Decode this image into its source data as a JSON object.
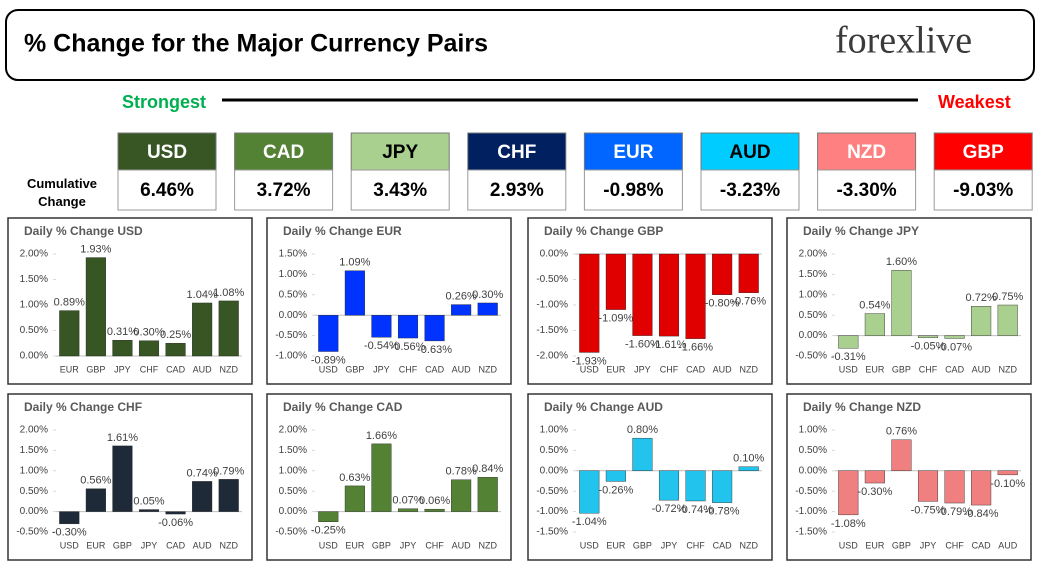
{
  "header": {
    "title": "% Change for the Major Currency Pairs",
    "logo": "forexlive"
  },
  "ranking": {
    "strongest": "Strongest",
    "weakest": "Weakest",
    "row_label": "Cumulative Change",
    "currencies": [
      "USD",
      "CAD",
      "JPY",
      "CHF",
      "EUR",
      "AUD",
      "NZD",
      "GBP"
    ],
    "values": [
      "6.46%",
      "3.72%",
      "3.43%",
      "2.93%",
      "-0.98%",
      "-3.23%",
      "-3.30%",
      "-9.03%"
    ],
    "colors": [
      "#375623",
      "#548235",
      "#a9d08e",
      "#002060",
      "#0066ff",
      "#00ccff",
      "#ff8080",
      "#ff0000"
    ],
    "text_colors": [
      "#ffffff",
      "#ffffff",
      "#000000",
      "#ffffff",
      "#ffffff",
      "#000000",
      "#ffffff",
      "#ffffff"
    ]
  },
  "chart_data": [
    {
      "type": "bar",
      "title": "Daily % Change USD",
      "color": "#375623",
      "categories": [
        "EUR",
        "GBP",
        "JPY",
        "CHF",
        "CAD",
        "AUD",
        "NZD"
      ],
      "values": [
        0.89,
        1.93,
        0.31,
        0.3,
        0.25,
        1.04,
        1.08
      ],
      "value_labels": [
        "0.89%",
        "1.93%",
        "0.31%",
        "0.30%",
        "0.25%",
        "1.04%",
        "1.08%"
      ],
      "ylim": [
        0,
        2
      ],
      "yticks": [
        {
          "value": 0,
          "label": "0.00%"
        },
        {
          "value": 0.5,
          "label": "0.50%"
        },
        {
          "value": 1,
          "label": "1.00%"
        },
        {
          "value": 1.5,
          "label": "1.50%"
        },
        {
          "value": 2,
          "label": "2.00%"
        }
      ]
    },
    {
      "type": "bar",
      "title": "Daily % Change EUR",
      "color": "#0033ff",
      "categories": [
        "USD",
        "GBP",
        "JPY",
        "CHF",
        "CAD",
        "AUD",
        "NZD"
      ],
      "values": [
        -0.89,
        1.09,
        -0.54,
        -0.56,
        -0.63,
        0.26,
        0.3
      ],
      "value_labels": [
        "-0.89%",
        "1.09%",
        "-0.54%",
        "-0.56%",
        "-0.63%",
        "0.26%",
        "0.30%"
      ],
      "ylim": [
        -1,
        1.5
      ],
      "yticks": [
        {
          "value": -1,
          "label": "-1.00%"
        },
        {
          "value": -0.5,
          "label": "-0.50%"
        },
        {
          "value": 0,
          "label": "0.00%"
        },
        {
          "value": 0.5,
          "label": "0.50%"
        },
        {
          "value": 1,
          "label": "1.00%"
        },
        {
          "value": 1.5,
          "label": "1.50%"
        }
      ]
    },
    {
      "type": "bar",
      "title": "Daily % Change GBP",
      "color": "#e00000",
      "categories": [
        "USD",
        "EUR",
        "JPY",
        "CHF",
        "CAD",
        "AUD",
        "NZD"
      ],
      "values": [
        -1.93,
        -1.09,
        -1.6,
        -1.61,
        -1.66,
        -0.8,
        -0.76
      ],
      "value_labels": [
        "-1.93%",
        "-1.09%",
        "-1.60%",
        "-1.61%",
        "-1.66%",
        "-0.80%",
        "-0.76%"
      ],
      "ylim": [
        -2,
        0
      ],
      "yticks": [
        {
          "value": -2,
          "label": "-2.00%"
        },
        {
          "value": -1.5,
          "label": "-1.50%"
        },
        {
          "value": -1,
          "label": "-1.00%"
        },
        {
          "value": -0.5,
          "label": "-0.50%"
        },
        {
          "value": 0,
          "label": "0.00%"
        }
      ]
    },
    {
      "type": "bar",
      "title": "Daily % Change JPY",
      "color": "#a9d08e",
      "categories": [
        "USD",
        "EUR",
        "GBP",
        "CHF",
        "CAD",
        "AUD",
        "NZD"
      ],
      "values": [
        -0.31,
        0.54,
        1.6,
        -0.05,
        -0.07,
        0.72,
        0.75
      ],
      "value_labels": [
        "-0.31%",
        "0.54%",
        "1.60%",
        "-0.05%",
        "-0.07%",
        "0.72%",
        "0.75%"
      ],
      "ylim": [
        -0.5,
        2
      ],
      "yticks": [
        {
          "value": -0.5,
          "label": "-0.50%"
        },
        {
          "value": 0,
          "label": "0.00%"
        },
        {
          "value": 0.5,
          "label": "0.50%"
        },
        {
          "value": 1,
          "label": "1.00%"
        },
        {
          "value": 1.5,
          "label": "1.50%"
        },
        {
          "value": 2,
          "label": "2.00%"
        }
      ]
    },
    {
      "type": "bar",
      "title": "Daily % Change CHF",
      "color": "#1f2a38",
      "categories": [
        "USD",
        "EUR",
        "GBP",
        "JPY",
        "CAD",
        "AUD",
        "NZD"
      ],
      "values": [
        -0.3,
        0.56,
        1.61,
        0.05,
        -0.06,
        0.74,
        0.79
      ],
      "value_labels": [
        "-0.30%",
        "0.56%",
        "1.61%",
        "0.05%",
        "-0.06%",
        "0.74%",
        "0.79%"
      ],
      "ylim": [
        -0.5,
        2
      ],
      "yticks": [
        {
          "value": -0.5,
          "label": "-0.50%"
        },
        {
          "value": 0,
          "label": "0.00%"
        },
        {
          "value": 0.5,
          "label": "0.50%"
        },
        {
          "value": 1,
          "label": "1.00%"
        },
        {
          "value": 1.5,
          "label": "1.50%"
        },
        {
          "value": 2,
          "label": "2.00%"
        }
      ]
    },
    {
      "type": "bar",
      "title": "Daily % Change CAD",
      "color": "#548235",
      "categories": [
        "USD",
        "EUR",
        "GBP",
        "JPY",
        "CHF",
        "AUD",
        "NZD"
      ],
      "values": [
        -0.25,
        0.63,
        1.66,
        0.07,
        0.06,
        0.78,
        0.84
      ],
      "value_labels": [
        "-0.25%",
        "0.63%",
        "1.66%",
        "0.07%",
        "0.06%",
        "0.78%",
        "0.84%"
      ],
      "ylim": [
        -0.5,
        2
      ],
      "yticks": [
        {
          "value": -0.5,
          "label": "-0.50%"
        },
        {
          "value": 0,
          "label": "0.00%"
        },
        {
          "value": 0.5,
          "label": "0.50%"
        },
        {
          "value": 1,
          "label": "1.00%"
        },
        {
          "value": 1.5,
          "label": "1.50%"
        },
        {
          "value": 2,
          "label": "2.00%"
        }
      ]
    },
    {
      "type": "bar",
      "title": "Daily % Change AUD",
      "color": "#22c4ee",
      "categories": [
        "USD",
        "EUR",
        "GBP",
        "JPY",
        "CHF",
        "CAD",
        "NZD"
      ],
      "values": [
        -1.04,
        -0.26,
        0.8,
        -0.72,
        -0.74,
        -0.78,
        0.1
      ],
      "value_labels": [
        "-1.04%",
        "-0.26%",
        "0.80%",
        "-0.72%",
        "-0.74%",
        "-0.78%",
        "0.10%"
      ],
      "ylim": [
        -1.5,
        1
      ],
      "yticks": [
        {
          "value": -1.5,
          "label": "-1.50%"
        },
        {
          "value": -1,
          "label": "-1.00%"
        },
        {
          "value": -0.5,
          "label": "-0.50%"
        },
        {
          "value": 0,
          "label": "0.00%"
        },
        {
          "value": 0.5,
          "label": "0.50%"
        },
        {
          "value": 1,
          "label": "1.00%"
        }
      ]
    },
    {
      "type": "bar",
      "title": "Daily % Change NZD",
      "color": "#f08080",
      "categories": [
        "USD",
        "EUR",
        "GBP",
        "JPY",
        "CHF",
        "CAD",
        "AUD"
      ],
      "values": [
        -1.08,
        -0.3,
        0.76,
        -0.75,
        -0.79,
        -0.84,
        -0.1
      ],
      "value_labels": [
        "-1.08%",
        "-0.30%",
        "0.76%",
        "-0.75%",
        "-0.79%",
        "-0.84%",
        "-0.10%"
      ],
      "ylim": [
        -1.5,
        1
      ],
      "yticks": [
        {
          "value": -1.5,
          "label": "-1.50%"
        },
        {
          "value": -1,
          "label": "-1.00%"
        },
        {
          "value": -0.5,
          "label": "-0.50%"
        },
        {
          "value": 0,
          "label": "0.00%"
        },
        {
          "value": 0.5,
          "label": "0.50%"
        },
        {
          "value": 1,
          "label": "1.00%"
        }
      ]
    }
  ]
}
